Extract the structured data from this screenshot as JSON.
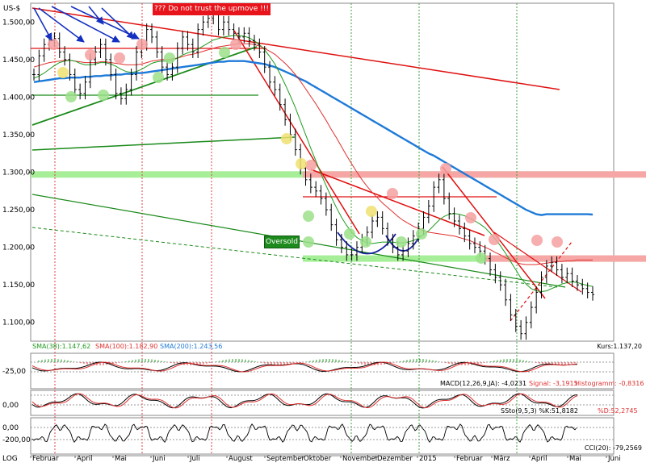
{
  "chart_data": {
    "type": "line",
    "title": "",
    "currency_label": "US-$",
    "scale_label": "LOG",
    "warning_annotation": "??? Do not trust the upmove !!!",
    "oversold_annotation": "Oversold",
    "price_panel": {
      "ylim": [
        1.075,
        1.525
      ],
      "yticks": [
        "1.500,00",
        "1.450,00",
        "1.400,00",
        "1.350,00",
        "1.300,00",
        "1.250,00",
        "1.200,00",
        "1.150,00",
        "1.100,00"
      ],
      "ytick_values": [
        1.5,
        1.45,
        1.4,
        1.35,
        1.3,
        1.25,
        1.2,
        1.15,
        1.1
      ],
      "legend": {
        "sma38": "SMA(38):1.147,62",
        "sma100": "SMA(100):1.182,90",
        "sma200": "SMA(200):1.243,56",
        "kurs": "Kurs:1.137,20"
      },
      "colors": {
        "price": "#000000",
        "sma38": "#1f9a1f",
        "sma100": "#e03030",
        "sma200": "#1e7ad8"
      },
      "close": [
        1.43,
        1.455,
        1.47,
        1.475,
        1.478,
        1.46,
        1.45,
        1.43,
        1.41,
        1.405,
        1.42,
        1.45,
        1.46,
        1.47,
        1.45,
        1.43,
        1.405,
        1.398,
        1.41,
        1.43,
        1.46,
        1.47,
        1.49,
        1.48,
        1.46,
        1.44,
        1.43,
        1.44,
        1.465,
        1.48,
        1.47,
        1.46,
        1.49,
        1.5,
        1.505,
        1.51,
        1.49,
        1.5,
        1.49,
        1.485,
        1.48,
        1.485,
        1.475,
        1.47,
        1.46,
        1.44,
        1.42,
        1.41,
        1.39,
        1.37,
        1.35,
        1.33,
        1.305,
        1.29,
        1.28,
        1.275,
        1.265,
        1.25,
        1.23,
        1.21,
        1.2,
        1.19,
        1.19,
        1.2,
        1.21,
        1.22,
        1.235,
        1.24,
        1.225,
        1.21,
        1.2,
        1.19,
        1.195,
        1.205,
        1.215,
        1.225,
        1.24,
        1.255,
        1.28,
        1.29,
        1.265,
        1.245,
        1.235,
        1.225,
        1.215,
        1.205,
        1.2,
        1.195,
        1.185,
        1.17,
        1.16,
        1.15,
        1.13,
        1.11,
        1.095,
        1.085,
        1.1,
        1.12,
        1.14,
        1.16,
        1.175,
        1.18,
        1.17,
        1.16,
        1.165,
        1.155,
        1.15,
        1.145,
        1.14,
        1.137
      ],
      "sma38": [
        1.425,
        1.428,
        1.432,
        1.437,
        1.442,
        1.446,
        1.448,
        1.449,
        1.448,
        1.445,
        1.443,
        1.443,
        1.444,
        1.446,
        1.446,
        1.444,
        1.441,
        1.437,
        1.434,
        1.433,
        1.434,
        1.437,
        1.441,
        1.445,
        1.447,
        1.448,
        1.448,
        1.449,
        1.452,
        1.456,
        1.459,
        1.461,
        1.464,
        1.468,
        1.472,
        1.476,
        1.478,
        1.48,
        1.481,
        1.482,
        1.482,
        1.481,
        1.479,
        1.475,
        1.47,
        1.463,
        1.454,
        1.444,
        1.431,
        1.417,
        1.402,
        1.386,
        1.368,
        1.35,
        1.332,
        1.315,
        1.298,
        1.282,
        1.267,
        1.253,
        1.24,
        1.229,
        1.22,
        1.213,
        1.209,
        1.206,
        1.205,
        1.206,
        1.207,
        1.207,
        1.207,
        1.206,
        1.206,
        1.207,
        1.209,
        1.212,
        1.217,
        1.222,
        1.229,
        1.236,
        1.241,
        1.244,
        1.245,
        1.244,
        1.242,
        1.239,
        1.235,
        1.231,
        1.226,
        1.219,
        1.211,
        1.202,
        1.192,
        1.181,
        1.17,
        1.159,
        1.151,
        1.145,
        1.142,
        1.141,
        1.142,
        1.145,
        1.148,
        1.151,
        1.153,
        1.154,
        1.153,
        1.151,
        1.149,
        1.148
      ],
      "sma100": [
        1.44,
        1.442,
        1.444,
        1.446,
        1.447,
        1.448,
        1.449,
        1.449,
        1.448,
        1.447,
        1.446,
        1.446,
        1.446,
        1.447,
        1.447,
        1.446,
        1.445,
        1.444,
        1.443,
        1.443,
        1.443,
        1.444,
        1.446,
        1.448,
        1.449,
        1.45,
        1.45,
        1.451,
        1.452,
        1.454,
        1.456,
        1.457,
        1.459,
        1.461,
        1.463,
        1.465,
        1.467,
        1.468,
        1.469,
        1.47,
        1.471,
        1.471,
        1.471,
        1.47,
        1.468,
        1.465,
        1.461,
        1.457,
        1.451,
        1.445,
        1.438,
        1.43,
        1.421,
        1.411,
        1.401,
        1.391,
        1.38,
        1.369,
        1.357,
        1.346,
        1.334,
        1.322,
        1.311,
        1.3,
        1.29,
        1.281,
        1.273,
        1.266,
        1.259,
        1.253,
        1.247,
        1.241,
        1.236,
        1.232,
        1.228,
        1.225,
        1.222,
        1.22,
        1.219,
        1.218,
        1.217,
        1.216,
        1.215,
        1.213,
        1.211,
        1.209,
        1.206,
        1.203,
        1.2,
        1.197,
        1.193,
        1.19,
        1.186,
        1.183,
        1.18,
        1.178,
        1.177,
        1.177,
        1.177,
        1.178,
        1.179,
        1.18,
        1.181,
        1.181,
        1.182,
        1.182,
        1.183,
        1.183,
        1.183,
        1.183
      ],
      "sma200": [
        1.42,
        1.421,
        1.422,
        1.423,
        1.424,
        1.425,
        1.425,
        1.426,
        1.426,
        1.426,
        1.427,
        1.427,
        1.428,
        1.428,
        1.429,
        1.429,
        1.43,
        1.43,
        1.431,
        1.431,
        1.432,
        1.432,
        1.433,
        1.434,
        1.435,
        1.436,
        1.437,
        1.438,
        1.439,
        1.44,
        1.441,
        1.442,
        1.443,
        1.444,
        1.445,
        1.446,
        1.447,
        1.447,
        1.448,
        1.448,
        1.448,
        1.448,
        1.447,
        1.446,
        1.445,
        1.444,
        1.442,
        1.44,
        1.437,
        1.434,
        1.431,
        1.428,
        1.424,
        1.421,
        1.417,
        1.413,
        1.409,
        1.405,
        1.401,
        1.397,
        1.393,
        1.389,
        1.385,
        1.381,
        1.377,
        1.373,
        1.369,
        1.365,
        1.361,
        1.357,
        1.353,
        1.349,
        1.345,
        1.341,
        1.337,
        1.333,
        1.329,
        1.325,
        1.322,
        1.318,
        1.314,
        1.31,
        1.306,
        1.302,
        1.298,
        1.294,
        1.29,
        1.286,
        1.282,
        1.278,
        1.274,
        1.27,
        1.266,
        1.262,
        1.258,
        1.254,
        1.25,
        1.247,
        1.244,
        1.243,
        1.244,
        1.244,
        1.244,
        1.244,
        1.244,
        1.244,
        1.244,
        1.244,
        1.244,
        1.2436
      ],
      "horizontal_levels": [
        1.297,
        1.185
      ]
    },
    "macd_panel": {
      "label": "MACD(12,26,9,JA): -4,0231",
      "signal_label": "Signal: -3,1915",
      "histogram_label": "Histogramm: -0,8316",
      "yticks": [
        "-25,00"
      ],
      "ylim": [
        -40,
        20
      ]
    },
    "ssto_panel": {
      "label": "SSto(9,5,3) %K:51,8182",
      "d_label": "%D:52,2745",
      "yticks": [
        "0,00"
      ],
      "ylim": [
        0,
        100
      ]
    },
    "cci_panel": {
      "label": "CCI(20): -79,2569",
      "yticks": [
        "0,00",
        "-200,00"
      ],
      "ylim": [
        -250,
        250
      ]
    },
    "x_axis": {
      "months": [
        "Februar",
        "April",
        "Mai",
        "Juni",
        "Juli",
        "August",
        "September",
        "Oktober",
        "November",
        "Dezember",
        "2015",
        "Februar",
        "März",
        "April",
        "Mai",
        "Juni"
      ]
    }
  }
}
